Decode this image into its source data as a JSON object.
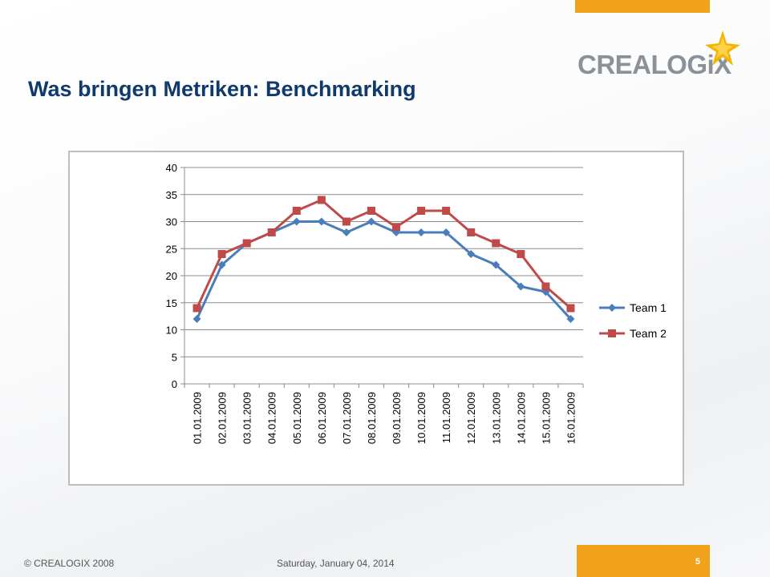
{
  "header": {
    "title": "Was bringen Metriken: Benchmarking",
    "logo_text": "CREALOGiX"
  },
  "footer": {
    "copyright": "© CREALOGIX  2008",
    "date": "Saturday, January 04, 2014",
    "page_number": "5"
  },
  "colors": {
    "accent": "#f0a21a",
    "title": "#0f3a6b",
    "team1": "#4a7ebb",
    "team2": "#be4b48"
  },
  "chart_data": {
    "type": "line",
    "title": "",
    "xlabel": "",
    "ylabel": "",
    "ylim": [
      0,
      40
    ],
    "yticks": [
      "0",
      "5",
      "10",
      "15",
      "20",
      "25",
      "30",
      "35",
      "40"
    ],
    "grid": true,
    "legend_position": "right",
    "categories": [
      "01.01.2009",
      "02.01.2009",
      "03.01.2009",
      "04.01.2009",
      "05.01.2009",
      "06.01.2009",
      "07.01.2009",
      "08.01.2009",
      "09.01.2009",
      "10.01.2009",
      "11.01.2009",
      "12.01.2009",
      "13.01.2009",
      "14.01.2009",
      "15.01.2009",
      "16.01.2009"
    ],
    "series": [
      {
        "name": "Team 1",
        "marker": "diamond",
        "color": "#4a7ebb",
        "values": [
          12,
          22,
          26,
          28,
          30,
          30,
          28,
          30,
          28,
          28,
          28,
          24,
          22,
          18,
          17,
          12
        ]
      },
      {
        "name": "Team 2",
        "marker": "square",
        "color": "#be4b48",
        "values": [
          14,
          24,
          26,
          28,
          32,
          34,
          30,
          32,
          29,
          32,
          32,
          28,
          26,
          24,
          18,
          14
        ]
      }
    ]
  }
}
